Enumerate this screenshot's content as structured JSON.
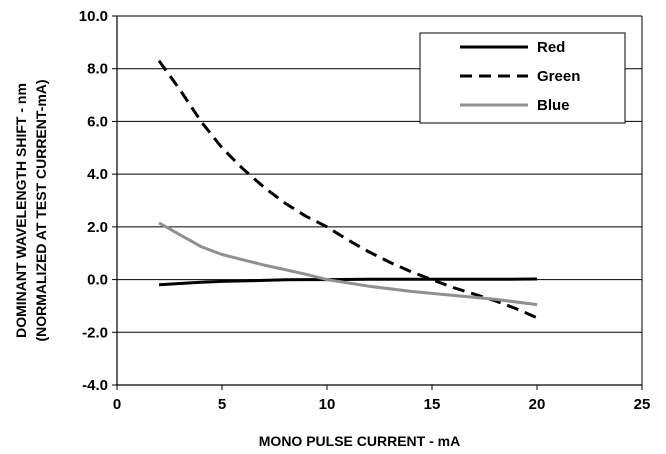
{
  "chart_data": {
    "type": "line",
    "title": "",
    "xlabel": "MONO PULSE CURRENT - mA",
    "ylabel_lines": [
      "DOMINANT WAVELENGTH SHIFT - nm",
      "(NORMALIZED AT TEST CURRENT-mA)"
    ],
    "xlim": [
      0,
      25
    ],
    "ylim": [
      -4,
      10
    ],
    "xticks": [
      "0",
      "5",
      "10",
      "15",
      "20",
      "25"
    ],
    "yticks": [
      "10.0",
      "8.0",
      "6.0",
      "4.0",
      "2.0",
      "0.0",
      "-2.0",
      "-4.0"
    ],
    "grid": "horizontal",
    "legend": "top-right",
    "series": [
      {
        "name": "Red",
        "color": "#000000",
        "dash": "solid",
        "x": [
          2,
          3,
          4,
          5,
          6,
          7,
          8,
          9,
          10,
          12,
          14,
          16,
          18,
          20
        ],
        "y": [
          -0.2,
          -0.15,
          -0.1,
          -0.07,
          -0.05,
          -0.03,
          -0.01,
          0.0,
          0.0,
          0.01,
          0.01,
          0.01,
          0.01,
          0.02
        ]
      },
      {
        "name": "Green",
        "color": "#000000",
        "dash": "dashed",
        "x": [
          2,
          3,
          4,
          5,
          6,
          7,
          8,
          9,
          10,
          11,
          12,
          13,
          14,
          15,
          16,
          17,
          18,
          19,
          20
        ],
        "y": [
          8.3,
          7.2,
          6.0,
          5.0,
          4.2,
          3.5,
          2.9,
          2.4,
          2.0,
          1.5,
          1.05,
          0.65,
          0.3,
          0.0,
          -0.3,
          -0.55,
          -0.8,
          -1.1,
          -1.45
        ]
      },
      {
        "name": "Blue",
        "color": "#909090",
        "dash": "solid",
        "x": [
          2,
          3,
          4,
          5,
          6,
          7,
          8,
          9,
          10,
          12,
          14,
          16,
          18,
          20
        ],
        "y": [
          2.15,
          1.7,
          1.25,
          0.95,
          0.75,
          0.55,
          0.38,
          0.2,
          0.0,
          -0.25,
          -0.45,
          -0.6,
          -0.75,
          -0.95
        ]
      }
    ]
  }
}
